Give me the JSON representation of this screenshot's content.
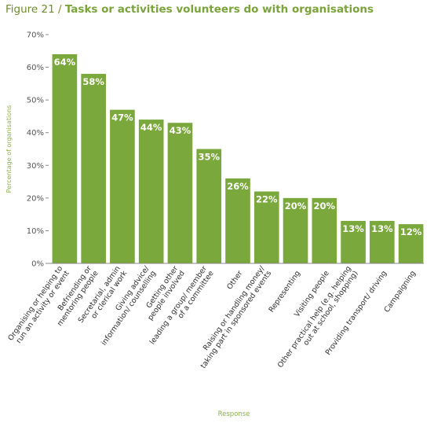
{
  "title": {
    "prefix": "Figure 21 / ",
    "main": "Tasks or activities volunteers do with organisations"
  },
  "colors": {
    "bar": "#7aa83c",
    "title_accent": "#7aa33a",
    "axis_label": "#8bb34a"
  },
  "chart_data": {
    "type": "bar",
    "title": "Tasks or activities volunteers do with organisations",
    "xlabel": "Response",
    "ylabel": "Percentage of organisations",
    "ylim": [
      0,
      70
    ],
    "yticks": [
      0,
      10,
      20,
      30,
      40,
      50,
      60,
      70
    ],
    "ytick_labels": [
      "0%",
      "10%",
      "20%",
      "30%",
      "40%",
      "50%",
      "60%",
      "70%"
    ],
    "grid": false,
    "categories": [
      [
        "Organising or helping to",
        "run an activity or event"
      ],
      [
        "Befriending or",
        "mentoring people"
      ],
      [
        "Secretarial, admin",
        "or clerical work"
      ],
      [
        "Giving advice/",
        "information/ counselling"
      ],
      [
        "Getting other",
        "people involved"
      ],
      [
        "leading a group/ member",
        "of a committee"
      ],
      [
        "Other"
      ],
      [
        "Raising or handling money/",
        "taking part in sponsored events"
      ],
      [
        "Representing"
      ],
      [
        "Visiting people"
      ],
      [
        "Other practical help (e.g. helping",
        "out at school, shopping)"
      ],
      [
        "Providing transport/ driving"
      ],
      [
        "Campaigning"
      ]
    ],
    "values": [
      64,
      58,
      47,
      44,
      43,
      35,
      26,
      22,
      20,
      20,
      13,
      13,
      12
    ],
    "value_labels": [
      "64%",
      "58%",
      "47%",
      "44%",
      "43%",
      "35%",
      "26%",
      "22%",
      "20%",
      "20%",
      "13%",
      "13%",
      "12%"
    ]
  }
}
